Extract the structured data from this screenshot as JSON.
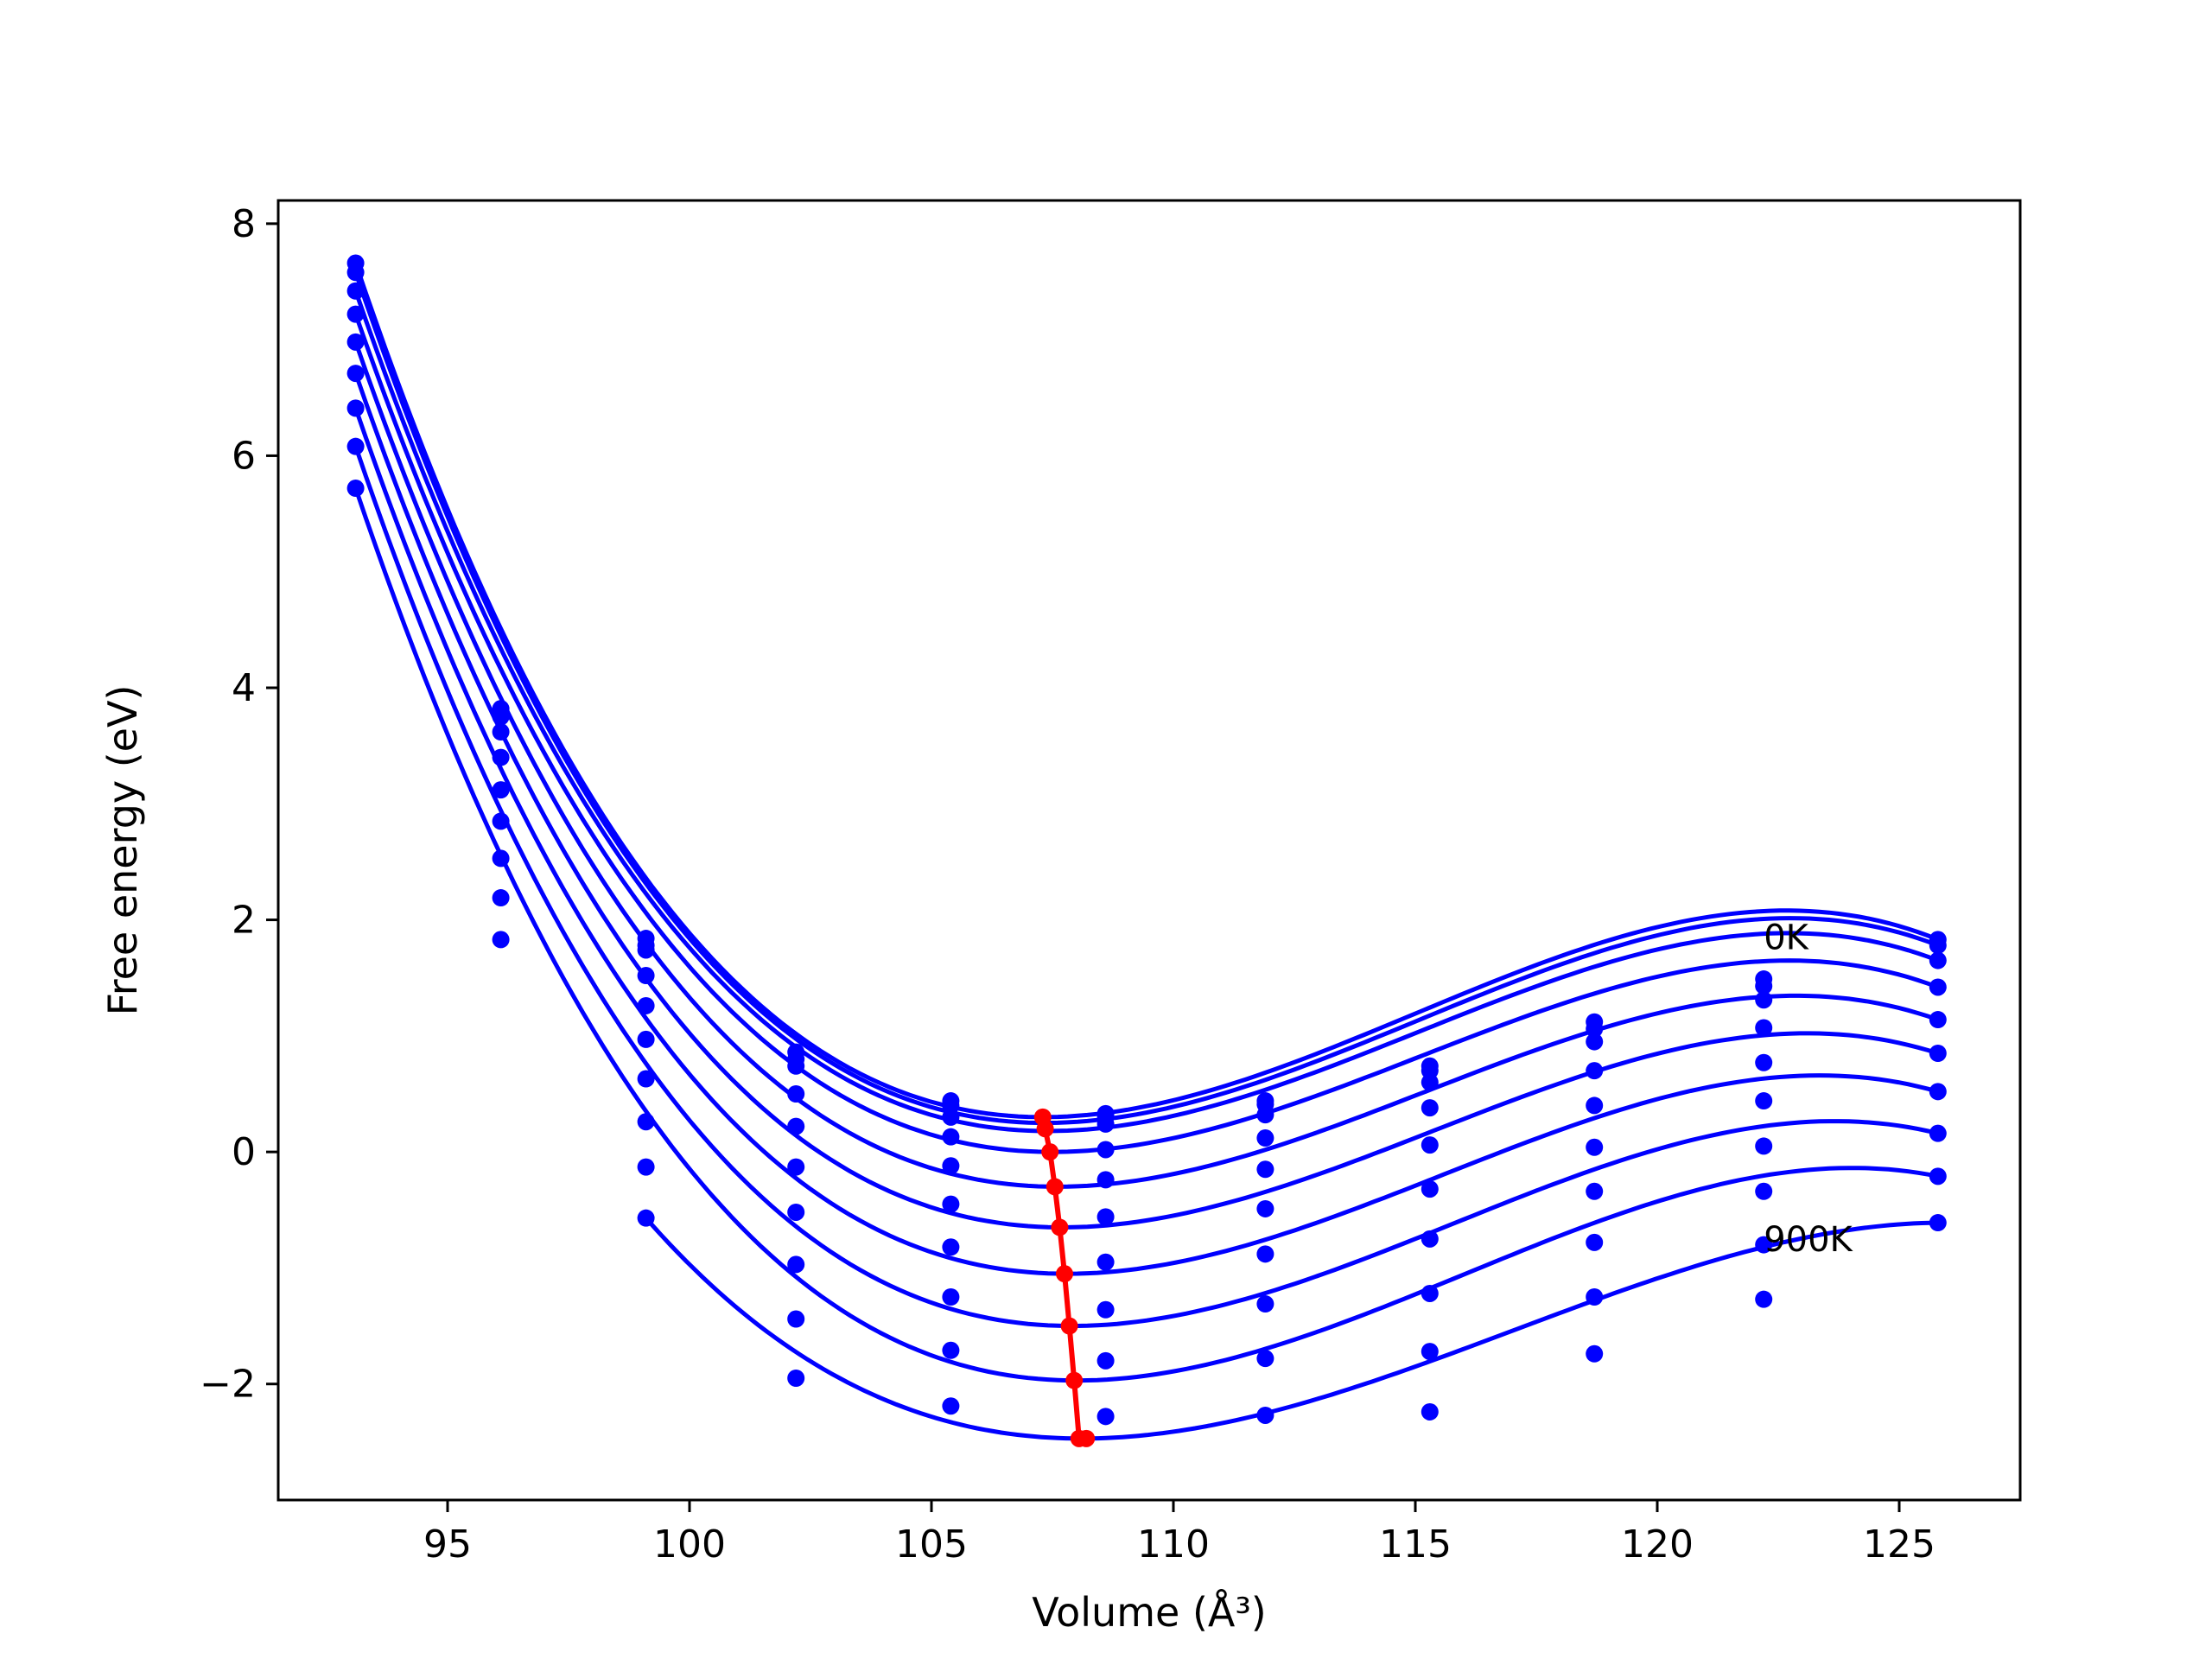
{
  "chart_data": {
    "type": "scatter",
    "xlabel": "Volume (Å³)",
    "ylabel": "Free energy (eV)",
    "xlim": [
      91.5,
      127.5
    ],
    "ylim": [
      -3.0,
      8.2
    ],
    "xticks": [
      95,
      100,
      105,
      110,
      115,
      120,
      125
    ],
    "yticks": [
      -2,
      0,
      2,
      4,
      6,
      8
    ],
    "ytick_labels": [
      "−2",
      "0",
      "2",
      "4",
      "6",
      "8"
    ],
    "grid": false,
    "legend": "none",
    "colors": {
      "curves": "#0000ff",
      "minimum_line": "#ff0000"
    },
    "annotations": [
      {
        "text": "0K",
        "x": 122.2,
        "y": 1.85
      },
      {
        "text": "900K",
        "x": 122.2,
        "y": -0.75
      }
    ],
    "x": [
      93.1,
      96.1,
      99.1,
      102.2,
      105.4,
      108.6,
      111.9,
      115.3,
      118.7,
      122.2,
      125.8
    ],
    "series": [
      {
        "v0": 107.3,
        "e0": 0.3,
        "points": [
          7.66,
          3.82,
          1.84,
          0.86,
          0.44,
          0.33,
          0.44,
          0.74,
          1.12,
          1.49,
          1.83
        ]
      },
      {
        "v0": 107.35,
        "e0": 0.25,
        "points": [
          7.58,
          3.75,
          1.78,
          0.8,
          0.4,
          0.3,
          0.41,
          0.7,
          1.06,
          1.43,
          1.78
        ]
      },
      {
        "v0": 107.4,
        "e0": 0.18,
        "points": [
          7.42,
          3.62,
          1.74,
          0.74,
          0.3,
          0.24,
          0.32,
          0.6,
          0.95,
          1.31,
          1.65
        ]
      },
      {
        "v0": 107.5,
        "e0": 0.0,
        "points": [
          7.22,
          3.4,
          1.52,
          0.5,
          0.13,
          0.02,
          0.12,
          0.38,
          0.7,
          1.07,
          1.42
        ]
      },
      {
        "v0": 107.6,
        "e0": -0.3,
        "points": [
          6.98,
          3.12,
          1.26,
          0.22,
          -0.12,
          -0.24,
          -0.15,
          0.06,
          0.4,
          0.77,
          1.14
        ]
      },
      {
        "v0": 107.7,
        "e0": -0.65,
        "points": [
          6.71,
          2.85,
          0.97,
          -0.13,
          -0.45,
          -0.56,
          -0.49,
          -0.32,
          0.04,
          0.44,
          0.85
        ]
      },
      {
        "v0": 107.8,
        "e0": -1.05,
        "points": [
          6.41,
          2.53,
          0.63,
          -0.52,
          -0.82,
          -0.95,
          -0.88,
          -0.75,
          -0.34,
          0.05,
          0.52
        ]
      },
      {
        "v0": 107.9,
        "e0": -1.5,
        "points": [
          6.08,
          2.19,
          0.26,
          -0.97,
          -1.25,
          -1.36,
          -1.31,
          -1.22,
          -0.78,
          -0.34,
          0.16
        ]
      },
      {
        "v0": 108.0,
        "e0": -1.97,
        "points": [
          5.72,
          1.83,
          -0.13,
          -1.44,
          -1.71,
          -1.8,
          -1.78,
          -1.72,
          -1.25,
          -0.8,
          -0.21
        ]
      },
      {
        "v0": 108.1,
        "e0": -2.47,
        "points": [
          null,
          null,
          -0.57,
          -1.95,
          -2.19,
          -2.28,
          -2.27,
          -2.24,
          -1.74,
          -1.27,
          -0.61
        ]
      }
    ],
    "minimum_line": {
      "x": [
        107.3,
        107.35,
        107.45,
        107.55,
        107.65,
        107.75,
        107.85,
        107.95,
        108.05,
        108.2
      ],
      "y": [
        0.3,
        0.2,
        0.0,
        -0.3,
        -0.65,
        -1.05,
        -1.5,
        -1.97,
        -2.47,
        -2.47
      ]
    }
  }
}
